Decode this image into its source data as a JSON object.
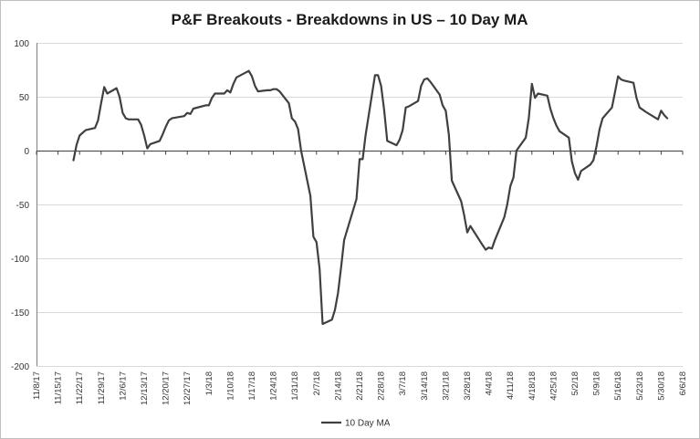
{
  "chart_data": {
    "type": "line",
    "title": "P&F Breakouts - Breakdowns in US – 10 Day MA",
    "xlabel": "",
    "ylabel": "",
    "ylim": [
      -200,
      100
    ],
    "yticks": [
      100,
      50,
      0,
      -50,
      -100,
      -150,
      -200
    ],
    "xlim": [
      "2017-11-08",
      "2018-06-06"
    ],
    "xticks": [
      "11/8/17",
      "11/15/17",
      "11/22/17",
      "11/29/17",
      "12/6/17",
      "12/13/17",
      "12/20/17",
      "12/27/17",
      "1/3/18",
      "1/10/18",
      "1/17/18",
      "1/24/18",
      "1/31/18",
      "2/7/18",
      "2/14/18",
      "2/21/18",
      "2/28/18",
      "3/7/18",
      "3/14/18",
      "3/21/18",
      "3/28/18",
      "4/4/18",
      "4/11/18",
      "4/18/18",
      "4/25/18",
      "5/2/18",
      "5/9/18",
      "5/16/18",
      "5/23/18",
      "5/30/18",
      "6/6/18"
    ],
    "grid": true,
    "legend_position": "bottom",
    "colors": {
      "series": "#404040",
      "grid": "#d9d9d9"
    },
    "series": [
      {
        "name": "10 Day MA",
        "points": [
          [
            "2017-11-20",
            -9
          ],
          [
            "2017-11-21",
            5
          ],
          [
            "2017-11-22",
            14
          ],
          [
            "2017-11-24",
            19
          ],
          [
            "2017-11-27",
            21
          ],
          [
            "2017-11-28",
            28
          ],
          [
            "2017-11-29",
            44
          ],
          [
            "2017-11-30",
            59
          ],
          [
            "2017-12-01",
            53
          ],
          [
            "2017-12-04",
            58
          ],
          [
            "2017-12-05",
            50
          ],
          [
            "2017-12-06",
            35
          ],
          [
            "2017-12-07",
            30
          ],
          [
            "2017-12-08",
            29
          ],
          [
            "2017-12-11",
            29
          ],
          [
            "2017-12-12",
            24
          ],
          [
            "2017-12-13",
            14
          ],
          [
            "2017-12-14",
            2
          ],
          [
            "2017-12-15",
            6
          ],
          [
            "2017-12-18",
            9
          ],
          [
            "2017-12-19",
            15
          ],
          [
            "2017-12-20",
            22
          ],
          [
            "2017-12-21",
            28
          ],
          [
            "2017-12-22",
            30
          ],
          [
            "2017-12-26",
            32
          ],
          [
            "2017-12-27",
            35
          ],
          [
            "2017-12-28",
            34
          ],
          [
            "2017-12-29",
            39
          ],
          [
            "2018-01-02",
            42
          ],
          [
            "2018-01-03",
            42
          ],
          [
            "2018-01-04",
            49
          ],
          [
            "2018-01-05",
            53
          ],
          [
            "2018-01-08",
            53
          ],
          [
            "2018-01-09",
            56
          ],
          [
            "2018-01-10",
            54
          ],
          [
            "2018-01-11",
            62
          ],
          [
            "2018-01-12",
            68
          ],
          [
            "2018-01-16",
            74
          ],
          [
            "2018-01-17",
            69
          ],
          [
            "2018-01-18",
            60
          ],
          [
            "2018-01-19",
            55
          ],
          [
            "2018-01-22",
            56
          ],
          [
            "2018-01-23",
            56
          ],
          [
            "2018-01-24",
            57
          ],
          [
            "2018-01-25",
            57
          ],
          [
            "2018-01-26",
            55
          ],
          [
            "2018-01-29",
            44
          ],
          [
            "2018-01-30",
            30
          ],
          [
            "2018-01-31",
            27
          ],
          [
            "2018-02-01",
            20
          ],
          [
            "2018-02-02",
            0
          ],
          [
            "2018-02-05",
            -42
          ],
          [
            "2018-02-06",
            -80
          ],
          [
            "2018-02-07",
            -85
          ],
          [
            "2018-02-08",
            -110
          ],
          [
            "2018-02-09",
            -161
          ],
          [
            "2018-02-12",
            -157
          ],
          [
            "2018-02-13",
            -148
          ],
          [
            "2018-02-14",
            -132
          ],
          [
            "2018-02-15",
            -108
          ],
          [
            "2018-02-16",
            -83
          ],
          [
            "2018-02-20",
            -45
          ],
          [
            "2018-02-21",
            -8
          ],
          [
            "2018-02-22",
            -8
          ],
          [
            "2018-02-23",
            15
          ],
          [
            "2018-02-26",
            70
          ],
          [
            "2018-02-27",
            70
          ],
          [
            "2018-02-28",
            60
          ],
          [
            "2018-03-01",
            37
          ],
          [
            "2018-03-02",
            9
          ],
          [
            "2018-03-05",
            5
          ],
          [
            "2018-03-06",
            10
          ],
          [
            "2018-03-07",
            19
          ],
          [
            "2018-03-08",
            40
          ],
          [
            "2018-03-09",
            41
          ],
          [
            "2018-03-12",
            46
          ],
          [
            "2018-03-13",
            60
          ],
          [
            "2018-03-14",
            66
          ],
          [
            "2018-03-15",
            67
          ],
          [
            "2018-03-16",
            64
          ],
          [
            "2018-03-19",
            52
          ],
          [
            "2018-03-20",
            42
          ],
          [
            "2018-03-21",
            37
          ],
          [
            "2018-03-22",
            15
          ],
          [
            "2018-03-23",
            -28
          ],
          [
            "2018-03-26",
            -47
          ],
          [
            "2018-03-27",
            -60
          ],
          [
            "2018-03-28",
            -76
          ],
          [
            "2018-03-29",
            -70
          ],
          [
            "2018-04-02",
            -88
          ],
          [
            "2018-04-03",
            -92
          ],
          [
            "2018-04-04",
            -90
          ],
          [
            "2018-04-05",
            -91
          ],
          [
            "2018-04-06",
            -83
          ],
          [
            "2018-04-09",
            -62
          ],
          [
            "2018-04-10",
            -50
          ],
          [
            "2018-04-11",
            -33
          ],
          [
            "2018-04-12",
            -25
          ],
          [
            "2018-04-13",
            0
          ],
          [
            "2018-04-16",
            12
          ],
          [
            "2018-04-17",
            30
          ],
          [
            "2018-04-18",
            62
          ],
          [
            "2018-04-19",
            49
          ],
          [
            "2018-04-20",
            53
          ],
          [
            "2018-04-23",
            51
          ],
          [
            "2018-04-24",
            39
          ],
          [
            "2018-04-25",
            30
          ],
          [
            "2018-04-26",
            23
          ],
          [
            "2018-04-27",
            18
          ],
          [
            "2018-04-30",
            12
          ],
          [
            "2018-05-01",
            -10
          ],
          [
            "2018-05-02",
            -21
          ],
          [
            "2018-05-03",
            -27
          ],
          [
            "2018-05-04",
            -19
          ],
          [
            "2018-05-07",
            -13
          ],
          [
            "2018-05-08",
            -9
          ],
          [
            "2018-05-09",
            4
          ],
          [
            "2018-05-10",
            20
          ],
          [
            "2018-05-11",
            30
          ],
          [
            "2018-05-14",
            40
          ],
          [
            "2018-05-15",
            54
          ],
          [
            "2018-05-16",
            69
          ],
          [
            "2018-05-17",
            66
          ],
          [
            "2018-05-18",
            65
          ],
          [
            "2018-05-21",
            63
          ],
          [
            "2018-05-22",
            49
          ],
          [
            "2018-05-23",
            40
          ],
          [
            "2018-05-24",
            38
          ],
          [
            "2018-05-25",
            36
          ],
          [
            "2018-05-29",
            29
          ],
          [
            "2018-05-30",
            37
          ],
          [
            "2018-05-31",
            33
          ],
          [
            "2018-06-01",
            30
          ]
        ]
      }
    ]
  }
}
